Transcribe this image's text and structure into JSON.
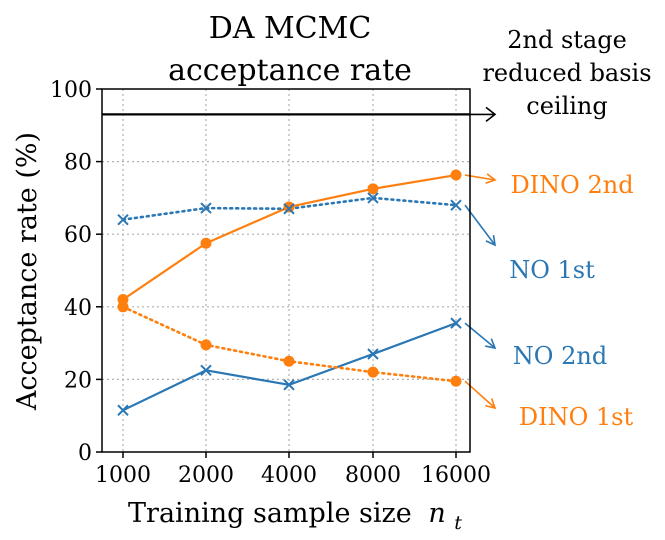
{
  "chart_data": {
    "type": "line",
    "title": [
      "DA MCMC",
      "acceptance rate"
    ],
    "xlabel": "Training sample size",
    "xlabel_var": "n",
    "xlabel_sub": "t",
    "ylabel": "Acceptance rate (%)",
    "categories": [
      "1000",
      "2000",
      "4000",
      "8000",
      "16000"
    ],
    "ylim": [
      0,
      100
    ],
    "yticks": [
      "0",
      "20",
      "40",
      "60",
      "80",
      "100"
    ],
    "grid": true,
    "colors": {
      "blue": "#2a77b4",
      "orange": "#ff7f0e",
      "black": "#000000"
    },
    "series": [
      {
        "name": "DINO 2nd",
        "color": "orange",
        "style": "solid",
        "marker": "circle",
        "values": [
          42,
          57.5,
          67.5,
          72.5,
          76.3
        ]
      },
      {
        "name": "NO 1st",
        "color": "blue",
        "style": "dotted",
        "marker": "x",
        "values": [
          64,
          67.2,
          67,
          70,
          68
        ]
      },
      {
        "name": "NO 2nd",
        "color": "blue",
        "style": "solid",
        "marker": "x",
        "values": [
          11.5,
          22.5,
          18.5,
          27,
          35.5
        ]
      },
      {
        "name": "DINO 1st",
        "color": "orange",
        "style": "dotted",
        "marker": "circle",
        "values": [
          40,
          29.5,
          25,
          22,
          19.5
        ]
      }
    ],
    "ceiling": {
      "value": 93,
      "label": [
        "2nd stage",
        "reduced basis",
        "ceiling"
      ]
    }
  }
}
